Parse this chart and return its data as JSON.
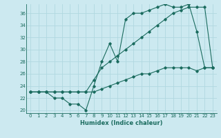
{
  "xlabel": "Humidex (Indice chaleur)",
  "bg_color": "#cce9f0",
  "line_color": "#1a6b5e",
  "grid_color": "#b0d8e0",
  "xlim": [
    -0.5,
    23.5
  ],
  "ylim": [
    19.5,
    37.5
  ],
  "yticks": [
    20,
    22,
    24,
    26,
    28,
    30,
    32,
    34,
    36
  ],
  "xticks": [
    0,
    1,
    2,
    3,
    4,
    5,
    6,
    7,
    8,
    9,
    10,
    11,
    12,
    13,
    14,
    15,
    16,
    17,
    18,
    19,
    20,
    21,
    22,
    23
  ],
  "series1_x": [
    0,
    1,
    2,
    3,
    4,
    5,
    6,
    7,
    8,
    9,
    10,
    11,
    12,
    13,
    14,
    15,
    16,
    17,
    18,
    19,
    20,
    21,
    22,
    23
  ],
  "series1_y": [
    23,
    23,
    23,
    22,
    22,
    21,
    21,
    20,
    24,
    28,
    31,
    28,
    35,
    36,
    36,
    36.5,
    37,
    37.5,
    37,
    37,
    37.5,
    33,
    27,
    27
  ],
  "series2_x": [
    0,
    1,
    2,
    3,
    4,
    5,
    6,
    7,
    8,
    9,
    10,
    11,
    12,
    13,
    14,
    15,
    16,
    17,
    18,
    19,
    20,
    21,
    22,
    23
  ],
  "series2_y": [
    23,
    23,
    23,
    23,
    23,
    23,
    23,
    23,
    25,
    27,
    28,
    29,
    30,
    31,
    32,
    33,
    34,
    35,
    36,
    36.5,
    37,
    37,
    37,
    27
  ],
  "series3_x": [
    0,
    1,
    2,
    3,
    4,
    5,
    6,
    7,
    8,
    9,
    10,
    11,
    12,
    13,
    14,
    15,
    16,
    17,
    18,
    19,
    20,
    21,
    22,
    23
  ],
  "series3_y": [
    23,
    23,
    23,
    23,
    23,
    23,
    23,
    23,
    23,
    23.5,
    24,
    24.5,
    25,
    25.5,
    26,
    26,
    26.5,
    27,
    27,
    27,
    27,
    26.5,
    27,
    27
  ]
}
